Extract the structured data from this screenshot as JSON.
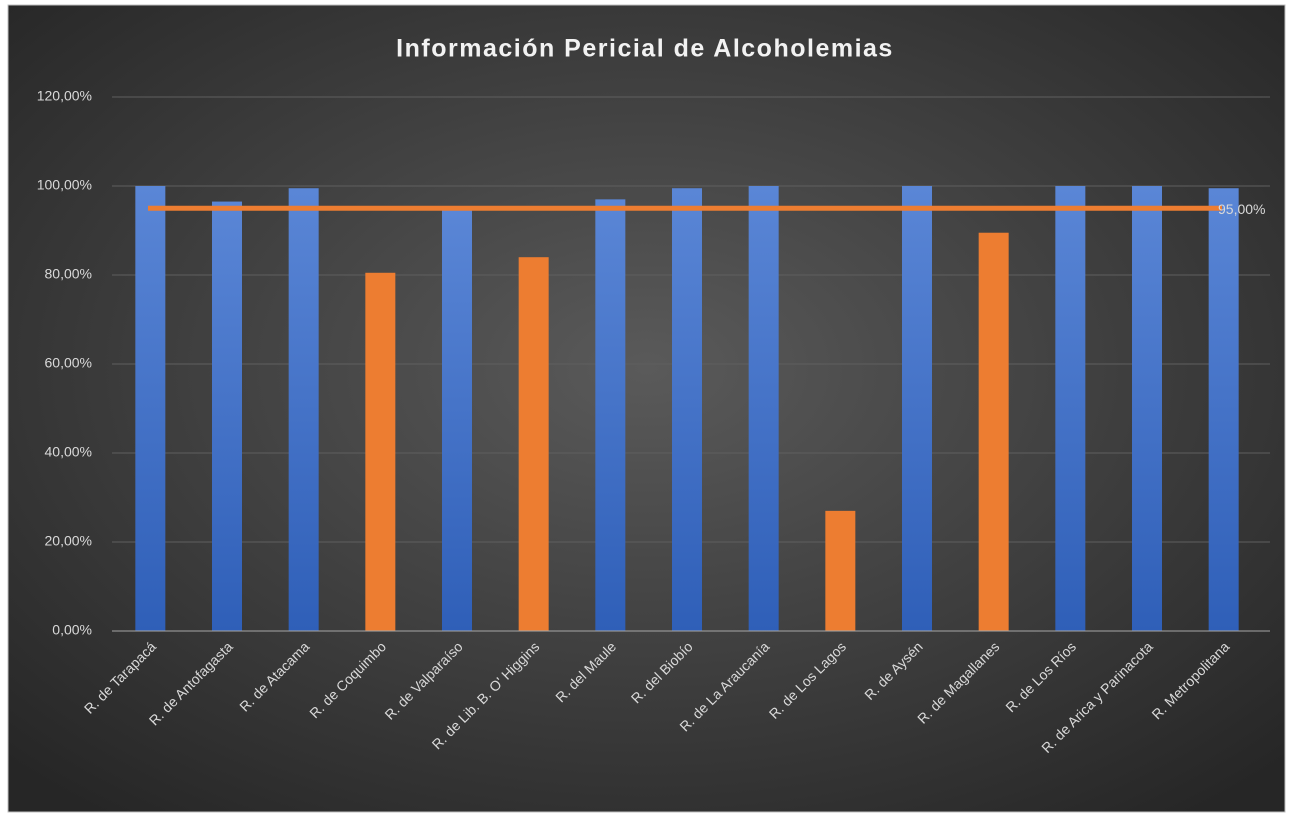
{
  "chart_data": {
    "type": "bar",
    "title": "Información  Pericial  de  Alcoholemias",
    "categories": [
      "R. de Tarapacá",
      "R. de Antofagasta",
      "R. de Atacama",
      "R. de Coquimbo",
      "R. de Valparaíso",
      "R. de Lib. B. O' Higgins",
      "R. del Maule",
      "R. del Biobío",
      "R. de La Araucanía",
      "R. de Los Lagos",
      "R. de Aysén",
      "R. de Magallanes",
      "R. de Los Ríos",
      "R. de Arica y Parinacota",
      "R. Metropolitana"
    ],
    "values": [
      100,
      96.5,
      99.5,
      80.5,
      94.5,
      84,
      97,
      99.5,
      100,
      27,
      100,
      89.5,
      100,
      100,
      99.5
    ],
    "colors": [
      "#4472c4",
      "#4472c4",
      "#4472c4",
      "#ed7d31",
      "#4472c4",
      "#ed7d31",
      "#4472c4",
      "#4472c4",
      "#4472c4",
      "#ed7d31",
      "#4472c4",
      "#ed7d31",
      "#4472c4",
      "#4472c4",
      "#4472c4"
    ],
    "target": {
      "value": 95,
      "label": "95,00%",
      "color": "#ed7d31"
    },
    "ylim": [
      0,
      120
    ],
    "yticks": [
      {
        "value": 0,
        "label": "0,00%"
      },
      {
        "value": 20,
        "label": "20,00%"
      },
      {
        "value": 40,
        "label": "40,00%"
      },
      {
        "value": 60,
        "label": "60,00%"
      },
      {
        "value": 80,
        "label": "80,00%"
      },
      {
        "value": 100,
        "label": "100,00%"
      },
      {
        "value": 120,
        "label": "120,00%"
      }
    ],
    "grid": true
  }
}
